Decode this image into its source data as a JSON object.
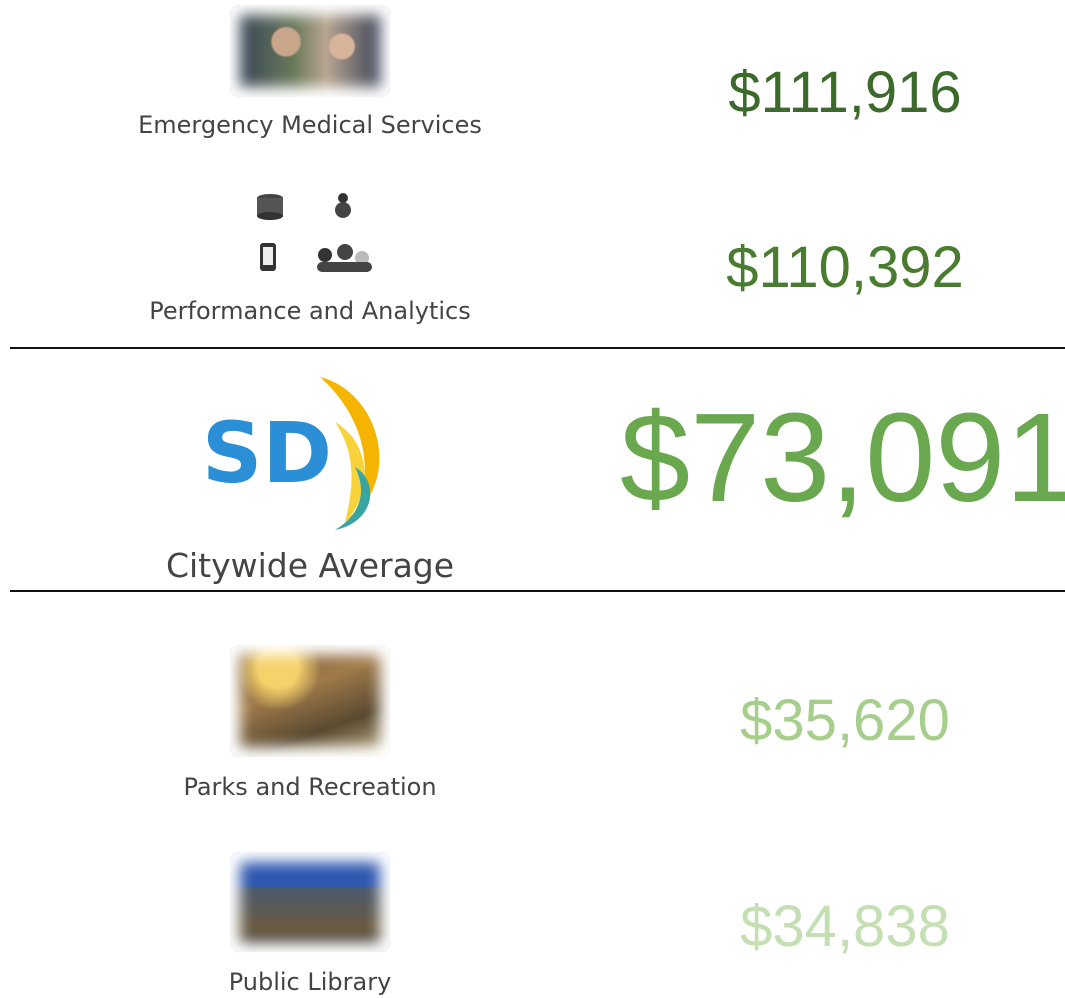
{
  "items": [
    {
      "label": "Emergency Medical Services",
      "value": "$111,916"
    },
    {
      "label": "Performance and Analytics",
      "value": "$110,392"
    },
    {
      "label": "Citywide Average",
      "value": "$73,091",
      "logo_text": "SD"
    },
    {
      "label": "Parks and Recreation",
      "value": "$35,620"
    },
    {
      "label": "Public Library",
      "value": "$34,838"
    }
  ]
}
